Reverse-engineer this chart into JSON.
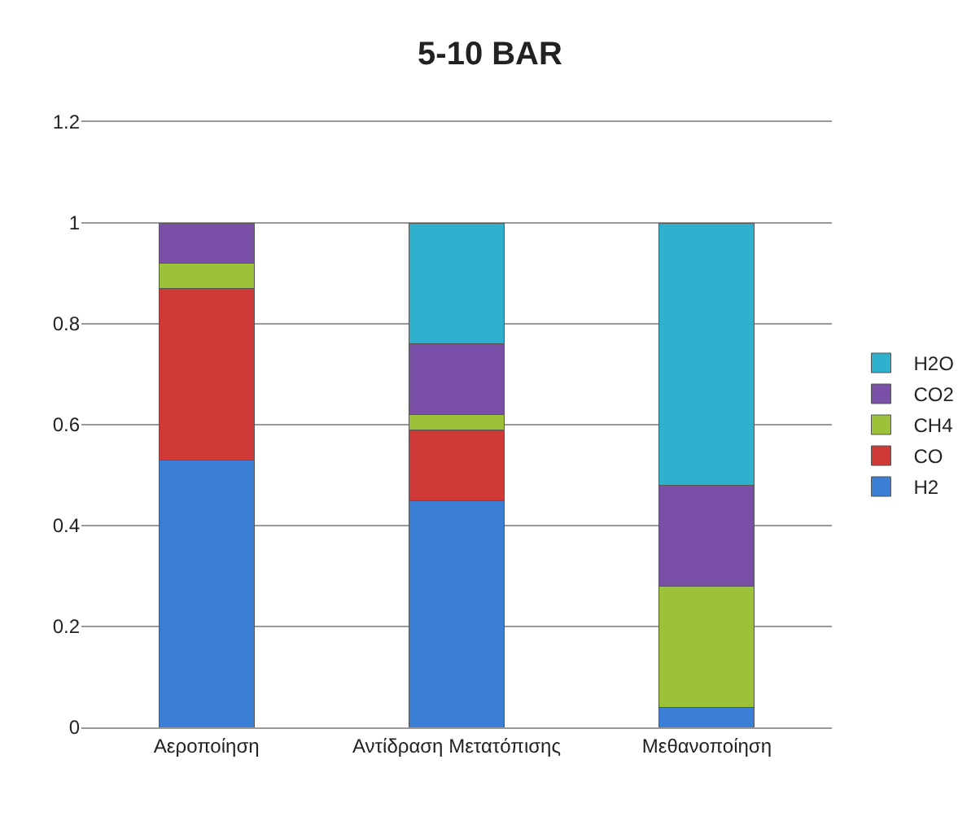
{
  "chart_data": {
    "type": "bar",
    "title": "5-10 BAR",
    "stacked": true,
    "categories": [
      "Αεροποίηση",
      "Αντίδραση Μετατόπισης",
      "Μεθανοποίηση"
    ],
    "series": [
      {
        "name": "H2",
        "color": "#3a7fd5",
        "values": [
          0.53,
          0.45,
          0.04
        ]
      },
      {
        "name": "CO",
        "color": "#d03a36",
        "values": [
          0.34,
          0.14,
          null
        ]
      },
      {
        "name": "CH4",
        "color": "#9cc23a",
        "values": [
          0.05,
          0.03,
          0.24
        ]
      },
      {
        "name": "CO2",
        "color": "#7a4fa8",
        "values": [
          0.08,
          0.14,
          0.2
        ]
      },
      {
        "name": "H2O",
        "color": "#2fb0cf",
        "values": [
          null,
          0.24,
          0.52
        ]
      }
    ],
    "ylim": [
      0,
      1.2
    ],
    "yticks": [
      0,
      0.2,
      0.4,
      0.6,
      0.8,
      1,
      1.2
    ],
    "grid": "y",
    "legend": "right"
  }
}
